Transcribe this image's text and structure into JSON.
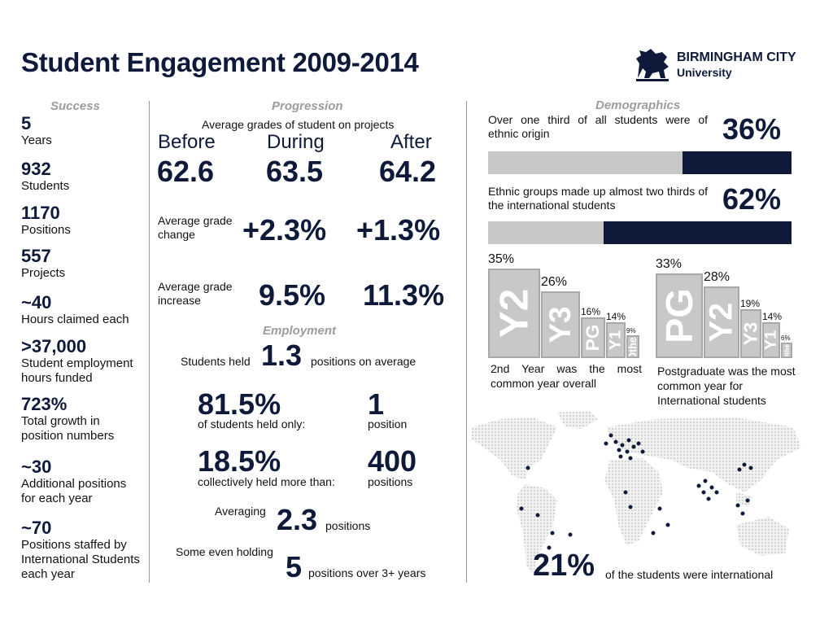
{
  "title": "Student Engagement 2009-2014",
  "logo": {
    "line1": "BIRMINGHAM CITY",
    "line2": "University",
    "icon": "lion-icon"
  },
  "success": {
    "heading": "Success",
    "stats": [
      {
        "value": "5",
        "label": "Years"
      },
      {
        "value": "932",
        "label": "Students"
      },
      {
        "value": "1170",
        "label": "Positions"
      },
      {
        "value": "557",
        "label": "Projects"
      },
      {
        "value": "~40",
        "label": "Hours claimed each"
      },
      {
        "value": ">37,000",
        "label": "Student employment hours funded"
      },
      {
        "value": "723%",
        "label": "Total growth in position numbers"
      },
      {
        "value": "~30",
        "label": "Additional positions for each year"
      },
      {
        "value": "~70",
        "label": "Positions staffed by International Students each year"
      }
    ]
  },
  "progression": {
    "heading": "Progression",
    "subtitle": "Average grades of student on projects",
    "columns": [
      {
        "label": "Before",
        "value": "62.6"
      },
      {
        "label": "During",
        "value": "63.5"
      },
      {
        "label": "After",
        "value": "64.2"
      }
    ],
    "change_label": "Average grade change",
    "changes": [
      "+2.3%",
      "+1.3%"
    ],
    "increase_label": "Average grade increase",
    "increases": [
      "9.5%",
      "11.3%"
    ]
  },
  "employment": {
    "heading": "Employment",
    "held_prefix": "Students held",
    "held_value": "1.3",
    "held_suffix": "positions on average",
    "pct1": "81.5%",
    "pct1_label": "of students held only:",
    "num1": "1",
    "num1_label": "position",
    "pct2": "18.5%",
    "pct2_label": "collectively held more than:",
    "num2": "400",
    "num2_label": "positions",
    "avg_prefix": "Averaging",
    "avg_value": "2.3",
    "avg_suffix": "positions",
    "some_prefix": "Some even holding",
    "some_value": "5",
    "some_suffix": "positions over 3+ years"
  },
  "demographics": {
    "heading": "Demographics",
    "stat1_text": "Over one third of all students were of ethnic origin",
    "stat1_value": "36%",
    "stat1_fraction": 0.36,
    "stat2_text": "Ethnic groups made up almost two thirds of the international students",
    "stat2_value": "62%",
    "stat2_fraction": 0.62,
    "colors": {
      "dark": "#0f1a3a",
      "light": "#c8c8c8"
    },
    "chart_left": {
      "bars": [
        {
          "label": "Y2",
          "pct": "35%",
          "value": 35
        },
        {
          "label": "Y3",
          "pct": "26%",
          "value": 26
        },
        {
          "label": "PG",
          "pct": "16%",
          "value": 16
        },
        {
          "label": "Y1",
          "pct": "14%",
          "value": 14
        },
        {
          "label": "Other",
          "pct": "9%",
          "value": 9
        }
      ],
      "caption": "2nd Year was the most common year overall"
    },
    "chart_right": {
      "bars": [
        {
          "label": "PG",
          "pct": "33%",
          "value": 33
        },
        {
          "label": "Y2",
          "pct": "28%",
          "value": 28
        },
        {
          "label": "Y3",
          "pct": "19%",
          "value": 19
        },
        {
          "label": "Y1",
          "pct": "14%",
          "value": 14
        },
        {
          "label": "Other",
          "pct": "6%",
          "value": 6
        }
      ],
      "caption": "Postgraduate was the most common year for International students"
    },
    "intl_value": "21%",
    "intl_label": "of the students were international"
  }
}
